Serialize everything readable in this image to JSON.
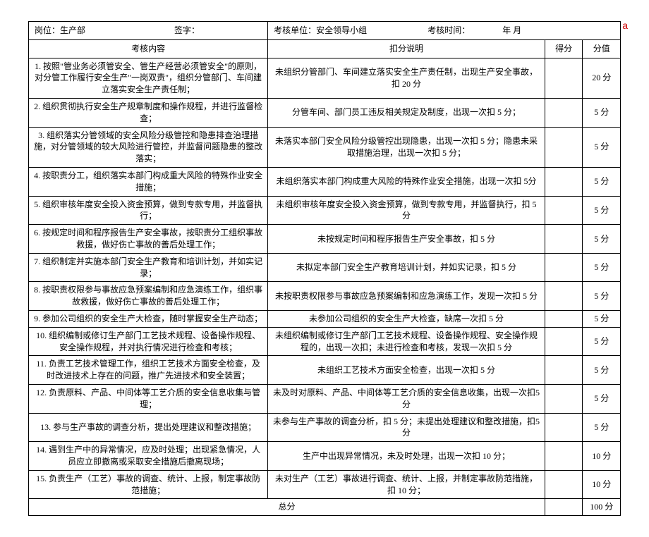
{
  "header": {
    "position_label": "岗位：生产部",
    "sign_label": "签字：",
    "unit_label": "考核单位：安全领导小组",
    "time_label": "考核时间：",
    "time_value": "年 月"
  },
  "columns": {
    "content": "考核内容",
    "deduction": "扣分说明",
    "score": "得分",
    "value": "分值"
  },
  "annotation": "a",
  "rows": [
    {
      "content": "1. 按照\"管业务必须管安全、管生产经营必须管安全\"的原则，对分管工作履行安全生产\"一岗双责\"，组织分管部门、车间建立落实安全生产责任制；",
      "deduction": "未组织分管部门、车间建立落实安全生产责任制，出现生产安全事故，扣 20 分",
      "value": "20 分"
    },
    {
      "content": "2. 组织贯彻执行安全生产规章制度和操作规程，并进行监督检查；",
      "deduction": "分管车间、部门员工违反相关规定及制度，出现一次扣 5 分；",
      "value": "5 分"
    },
    {
      "content": "3. 组织落实分管领域的安全风险分级管控和隐患排查治理措施，对分管领域的较大风险进行管控，并监督问题隐患的整改落实；",
      "deduction": "未落实本部门安全风险分级管控出现隐患，出现一次扣 5 分；隐患未采取措施治理，出现一次扣 5 分；",
      "value": "5 分"
    },
    {
      "content": "4. 按职责分工，组织落实本部门构成重大风险的特殊作业安全措施；",
      "deduction": "未组织落实本部门构成重大风险的特殊作业安全措施，出现一次扣 5分",
      "value": "5 分"
    },
    {
      "content": "5. 组织审核年度安全投入资金预算，做到专款专用，并监督执行；",
      "deduction": "未组织审核年度安全投入资金预算，做到专款专用，并监督执行，扣 5分",
      "value": "5 分"
    },
    {
      "content": "6. 按规定时间和程序报告生产安全事故，按职责分工组织事故救援，做好伤亡事故的善后处理工作；",
      "deduction": "未按规定时间和程序报告生产安全事故，扣 5 分",
      "value": "5 分"
    },
    {
      "content": "7. 组织制定并实施本部门安全生产教育和培训计划，并如实记录；",
      "deduction": "未拟定本部门安全生产教育培训计划，并如实记录，扣 5 分",
      "value": "5 分"
    },
    {
      "content": "8. 按职责权限参与事故应急预案编制和应急演练工作，组织事故救援，做好伤亡事故的善后处理工作；",
      "deduction": "未按职责权限参与事故应急预案编制和应急演练工作，发现一次扣 5 分",
      "value": "5 分"
    },
    {
      "content": "9. 参加公司组织的安全生产大检查，随时掌握安全生产动态；",
      "deduction": "未参加公司组织的安全生产大检查，缺席一次扣 5 分",
      "value": "5 分"
    },
    {
      "content": "10. 组织编制或修订生产部门工艺技术规程、设备操作规程、安全操作规程，并对执行情况进行检查和考核；",
      "deduction": "未组织编制或修订生产部门工艺技术规程、设备操作规程、安全操作规程的，出现一次扣；未进行检查和考核，发现一次扣 5 分",
      "value": "5 分"
    },
    {
      "content": "11. 负责工艺技术管理工作，组织工艺技术方面安全检查，及时改进技术上存在的问题，推广先进技术和安全装置；",
      "deduction": "未组织工艺技术方面安全检查，出现一次扣 5 分",
      "value": "5 分"
    },
    {
      "content": "12. 负责原料、产品、中间体等工艺介质的安全信息收集与管理；",
      "deduction": "未及时对原料、产品、中间体等工艺介质的安全信息收集，出现一次扣5 分",
      "value": "5 分"
    },
    {
      "content": "13. 参与生产事故的调查分析，提出处理建议和整改措施；",
      "deduction": "未参与生产事故的调查分析，扣 5 分；未提出处理建议和整改措施，扣5 分",
      "value": "5 分"
    },
    {
      "content": "14. 遇到生产中的异常情况，应及时处理；出现紧急情况，人员应立即撤离或采取安全措施后撤离现场；",
      "deduction": "生产中出现异常情况，未及时处理，出现一次扣 10 分；",
      "value": "10 分"
    },
    {
      "content": "15. 负责生产（工艺）事故的调查、统计、上报，制定事故防范措施；",
      "deduction": "未对生产（工艺）事故进行调查、统计、上报，并制定事故防范措施，扣 10 分；",
      "value": "10 分"
    }
  ],
  "footer": {
    "total_label": "总分",
    "total_value": "100 分"
  }
}
